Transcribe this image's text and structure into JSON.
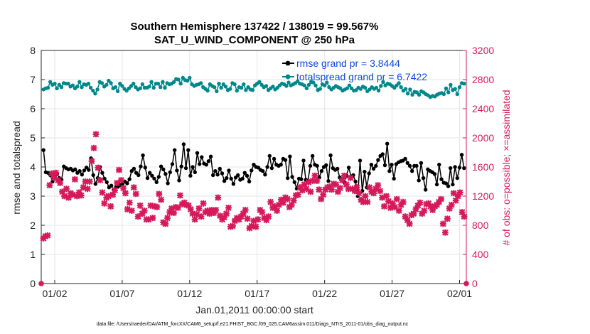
{
  "chart_data": {
    "type": "line",
    "title": "Southern Hemisphere 137422 / 138019 = 99.567%",
    "subtitle": "SAT_U_WIND_COMPONENT @ 250 hPa",
    "xlabel": "Jan.01,2011 00:00:00 start",
    "ylabel": "rmse and totalspread",
    "ylabel_right": "# of obs: o=possible; ×=assimilated",
    "x_ticks": [
      "01/02",
      "01/07",
      "01/12",
      "01/17",
      "01/22",
      "01/27",
      "02/01"
    ],
    "x_tick_days": [
      1,
      6,
      11,
      16,
      21,
      26,
      31
    ],
    "xlim_days": [
      0,
      31.5
    ],
    "y_ticks": [
      "0",
      "1",
      "2",
      "3",
      "4",
      "5",
      "6",
      "7",
      "8"
    ],
    "ylim": [
      0,
      8
    ],
    "y_right_ticks": [
      "0",
      "400",
      "800",
      "1200",
      "1600",
      "2000",
      "2400",
      "2800",
      "3200"
    ],
    "ylim_right": [
      0,
      3200
    ],
    "grid": true,
    "legend_position": "top-right",
    "series": [
      {
        "name": "rmse grand pr = 3.8444",
        "axis": "left",
        "color": "#000000",
        "marker": "dot",
        "values": [
          4.58,
          3.82,
          3.8,
          3.72,
          3.5,
          3.68,
          3.76,
          3.62,
          3.56,
          4.02,
          3.96,
          3.92,
          3.94,
          3.88,
          3.92,
          3.8,
          3.86,
          3.74,
          3.88,
          3.98,
          3.9,
          4.3,
          3.72,
          3.42,
          3.62,
          4.0,
          3.8,
          3.6,
          3.48,
          3.3,
          3.36,
          3.22,
          3.3,
          3.32,
          3.38,
          3.42,
          3.5,
          3.44,
          3.58,
          3.86,
          3.94,
          3.8,
          3.72,
          4.02,
          4.4,
          3.98,
          3.62,
          3.8,
          3.7,
          3.6,
          3.48,
          3.66,
          4.02,
          3.92,
          3.76,
          3.44,
          3.82,
          4.1,
          4.58,
          3.88,
          3.54,
          4.02,
          4.78,
          3.96,
          4.58,
          3.7,
          4.0,
          3.82,
          4.48,
          4.1,
          4.34,
          4.12,
          4.08,
          4.2,
          4.36,
          3.72,
          3.86,
          3.74,
          3.94,
          3.78,
          3.52,
          3.62,
          3.88,
          3.6,
          3.42,
          3.64,
          3.72,
          3.56,
          3.6,
          3.8,
          3.7,
          3.5,
          3.88,
          4.08,
          4.0,
          3.98,
          3.9,
          3.86,
          3.74,
          4.0,
          4.38,
          3.96,
          4.28,
          4.08,
          4.04,
          4.08,
          4.28,
          4.24,
          3.62,
          4.36,
          3.66,
          3.48,
          3.26,
          3.6,
          3.58,
          4.22,
          3.56,
          3.54,
          4.04,
          4.38,
          4.08,
          4.04,
          3.64,
          3.86,
          4.0,
          4.06,
          3.52,
          4.4,
          3.96,
          3.9,
          3.94,
          3.64,
          3.54,
          3.48,
          3.7,
          3.98,
          3.68,
          3.72,
          3.5,
          3.0,
          4.22,
          3.18,
          3.84,
          3.3,
          3.78,
          4.08,
          3.94,
          4.04,
          4.24,
          4.38,
          4.44,
          4.06,
          4.8,
          3.86,
          4.08,
          3.6,
          4.1,
          4.16,
          4.2,
          4.22,
          4.28,
          4.14,
          4.04,
          3.86,
          4.04,
          4.04,
          3.54,
          4.14,
          3.62,
          3.22,
          3.92,
          3.86,
          3.82,
          3.76,
          3.4,
          4.08,
          3.58,
          3.46,
          3.44,
          3.34,
          3.96,
          3.4,
          4.0,
          3.62,
          3.98,
          4.42,
          3.96
        ]
      },
      {
        "name": "totalspread grand pr = 6.7422",
        "axis": "left",
        "color": "#00888a",
        "marker": "dot",
        "values": [
          6.66,
          6.7,
          6.72,
          6.92,
          6.82,
          6.86,
          6.7,
          6.82,
          6.74,
          6.88,
          6.86,
          6.86,
          6.76,
          6.8,
          6.7,
          6.76,
          6.92,
          6.74,
          6.84,
          6.82,
          6.86,
          6.72,
          6.62,
          6.52,
          6.66,
          6.92,
          6.88,
          6.76,
          6.82,
          6.96,
          6.88,
          6.7,
          6.74,
          6.6,
          6.86,
          6.78,
          6.68,
          6.62,
          6.7,
          6.78,
          6.86,
          6.74,
          6.66,
          6.7,
          6.84,
          6.72,
          6.72,
          6.76,
          6.92,
          6.72,
          6.86,
          6.86,
          6.74,
          6.92,
          6.72,
          6.88,
          6.84,
          6.86,
          6.92,
          7.02,
          7.0,
          6.86,
          7.06,
          6.98,
          6.96,
          7.06,
          6.84,
          6.78,
          6.82,
          6.84,
          6.88,
          6.74,
          6.68,
          6.62,
          6.84,
          6.78,
          6.74,
          6.6,
          6.86,
          6.72,
          6.84,
          6.76,
          6.64,
          6.68,
          6.88,
          6.84,
          6.62,
          6.74,
          6.72,
          6.84,
          6.64,
          6.74,
          6.66,
          6.64,
          6.8,
          6.86,
          6.92,
          6.82,
          6.74,
          6.78,
          6.64,
          6.7,
          6.76,
          6.66,
          6.72,
          6.8,
          6.86,
          6.84,
          6.78,
          6.9,
          6.8,
          6.84,
          6.88,
          6.94,
          6.86,
          6.84,
          6.8,
          6.7,
          6.82,
          6.92,
          6.9,
          6.8,
          6.64,
          6.68,
          6.84,
          6.8,
          6.9,
          6.74,
          6.66,
          6.72,
          6.78,
          6.74,
          6.7,
          6.62,
          6.66,
          6.7,
          6.8,
          6.7,
          6.62,
          6.64,
          6.72,
          6.68,
          6.76,
          6.72,
          6.6,
          6.66,
          6.74,
          6.68,
          6.72,
          6.62,
          6.78,
          6.92,
          6.8,
          6.86,
          6.84,
          6.78,
          6.72,
          6.8,
          6.88,
          6.74,
          6.62,
          6.68,
          6.52,
          6.66,
          6.48,
          6.58,
          6.56,
          6.48,
          6.6,
          6.56,
          6.5,
          6.46,
          6.4,
          6.44,
          6.42,
          6.48,
          6.52,
          6.54,
          6.5,
          6.7,
          6.56,
          6.82,
          6.64,
          6.68,
          6.5,
          6.74,
          6.88,
          6.86
        ]
      },
      {
        "name": "obs possible",
        "axis": "right",
        "color": "#d6195a",
        "marker": "circle",
        "values": [
          0
        ]
      },
      {
        "name": "obs assimilated",
        "axis": "right",
        "color": "#d6195a",
        "marker": "x",
        "values": [
          620,
          650,
          660,
          1350,
          1510,
          1450,
          1520,
          1420,
          1380,
          1260,
          1200,
          1300,
          1180,
          1240,
          1220,
          1430,
          1200,
          1250,
          1210,
          1320,
          1400,
          1300,
          1400,
          1680,
          1860,
          2050,
          1590,
          1420,
          1250,
          1100,
          1180,
          1200,
          1060,
          1220,
          1280,
          1380,
          1560,
          1420,
          1310,
          1240,
          1020,
          1110,
          1000,
          1320,
          1230,
          920,
          1070,
          960,
          1000,
          880,
          880,
          1070,
          900,
          1060,
          1050,
          1230,
          1150,
          840,
          820,
          900,
          980,
          1030,
          970,
          1050,
          1040,
          1210,
          1090,
          1110,
          1080,
          1070,
          1020,
          960,
          880,
          950,
          1030,
          920,
          1100,
          980,
          1000,
          960,
          1010,
          970,
          1010,
          1180,
          930,
          880,
          910,
          960,
          1040,
          780,
          790,
          860,
          900,
          880,
          920,
          960,
          1010,
          890,
          760,
          790,
          860,
          780,
          880,
          1010,
          980,
          900,
          870,
          920,
          1120,
          1040,
          1060,
          1000,
          1080,
          1150,
          1110,
          1180,
          1160,
          1050,
          1080,
          1140,
          1210,
          1220,
          1320,
          1280,
          1360,
          1300,
          1390,
          1260,
          1410,
          1480,
          1410,
          1290,
          1160,
          1220,
          1290,
          1320,
          1330,
          1290,
          1370,
          1360,
          1260,
          1310,
          1420,
          1480,
          1360,
          1300,
          1450,
          1300,
          1270,
          1320,
          1240,
          1150,
          1120,
          1200,
          1120,
          1320,
          1260,
          1240,
          1300,
          1350,
          1270,
          1180,
          1060,
          1200,
          1130,
          1040,
          1100,
          1050,
          1160,
          1000,
          1080,
          1120,
          920,
          870,
          820,
          940,
          960,
          1020,
          1070,
          1110,
          960,
          1000,
          1090,
          1100,
          1060,
          1010,
          1060,
          1080,
          1120,
          1160,
          820,
          700,
          890,
          1030,
          1080,
          1240,
          1140,
          1200,
          1250,
          980,
          920
        ]
      }
    ]
  },
  "footnote": "data file: /Users/raeder/DAI/ATM_forcXX/CAM6_setup/f.e21.FHIST_BGC.f09_025.CAM6assim.011/Diags_NTrS_2011-01/obs_diag_output.nc",
  "colors": {
    "rmse": "#000000",
    "spread": "#00888a",
    "obs": "#d6195a",
    "legend_text": "#0b49e0",
    "grid": "#e6e6e6"
  }
}
